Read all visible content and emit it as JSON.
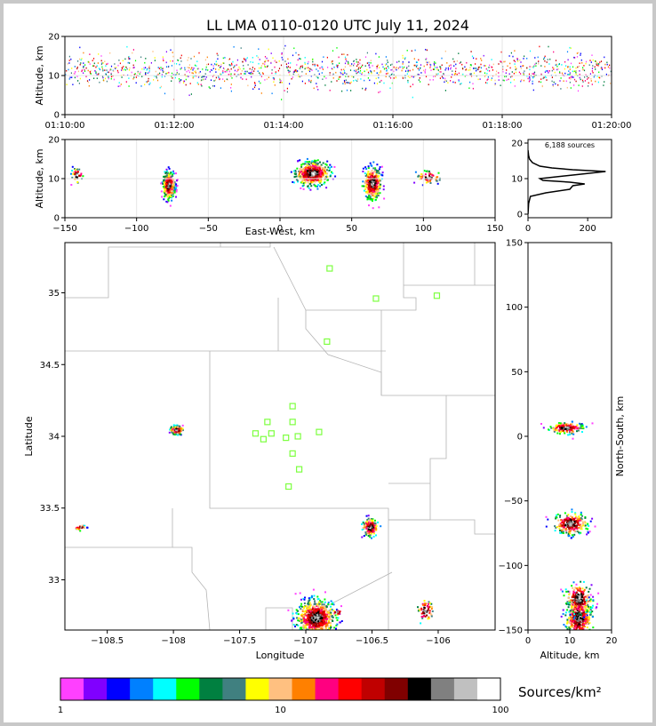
{
  "title": "LL LMA 0110-0120 UTC July 11, 2024",
  "colors": {
    "axis": "#000000",
    "grid": "#e6e6e6",
    "border": "#b4b4b4",
    "station": "#7dff40",
    "profile": "#000000"
  },
  "chart_data": [
    {
      "id": "time-height",
      "type": "scatter",
      "xlabel": "",
      "ylabel": "Altitude, km",
      "xlim_minutes": [
        0,
        10
      ],
      "ylim": [
        0,
        20
      ],
      "x_ticks": [
        {
          "v": 0,
          "label": "01:10:00"
        },
        {
          "v": 2,
          "label": "01:12:00"
        },
        {
          "v": 4,
          "label": "01:14:00"
        },
        {
          "v": 6,
          "label": "01:16:00"
        },
        {
          "v": 8,
          "label": "01:18:00"
        },
        {
          "v": 10,
          "label": "01:20:00"
        }
      ],
      "y_ticks": [
        0,
        10,
        20
      ]
    },
    {
      "id": "east-west-height",
      "type": "scatter",
      "xlabel": "East-West, km",
      "ylabel": "Altitude, km",
      "xlim": [
        -150,
        150
      ],
      "ylim": [
        0,
        20
      ],
      "x_ticks": [
        -150,
        -100,
        -50,
        0,
        50,
        100,
        150
      ],
      "y_ticks": [
        0,
        10,
        20
      ],
      "clusters": [
        {
          "x": -78,
          "y": 8.5,
          "sx": 2,
          "sy": 1.6
        },
        {
          "x": 22,
          "y": 11.5,
          "sx": 6,
          "sy": 1.5
        },
        {
          "x": 64,
          "y": 9,
          "sx": 3,
          "sy": 2
        },
        {
          "x": -142,
          "y": 11,
          "sx": 2,
          "sy": 1
        },
        {
          "x": 103,
          "y": 10.5,
          "sx": 4,
          "sy": 0.8
        }
      ]
    },
    {
      "id": "altitude-histogram",
      "type": "line",
      "annotation": "6,188 sources",
      "xlim": [
        0,
        280
      ],
      "ylim": [
        -1,
        21
      ],
      "x_ticks": [
        0,
        200
      ],
      "y_ticks": [
        0,
        10,
        20
      ],
      "profile": [
        [
          0,
          0
        ],
        [
          2,
          3
        ],
        [
          8,
          5
        ],
        [
          60,
          6
        ],
        [
          140,
          7
        ],
        [
          150,
          8
        ],
        [
          190,
          8.5
        ],
        [
          140,
          9
        ],
        [
          50,
          9.5
        ],
        [
          40,
          10
        ],
        [
          150,
          11
        ],
        [
          260,
          12
        ],
        [
          150,
          12.5
        ],
        [
          80,
          13
        ],
        [
          40,
          13.5
        ],
        [
          15,
          14.5
        ],
        [
          5,
          15.5
        ],
        [
          2,
          16.5
        ],
        [
          0,
          18
        ]
      ]
    },
    {
      "id": "plan-view",
      "type": "scatter",
      "xlabel": "Longitude",
      "ylabel": "Latitude",
      "xlim": [
        -108.82,
        -105.57
      ],
      "ylim": [
        32.65,
        35.35
      ],
      "x_ticks": [
        -108.5,
        -108.0,
        -107.5,
        -107.0,
        -106.5,
        -106.0
      ],
      "y_ticks": [
        33.0,
        33.5,
        34.0,
        34.5,
        35.0
      ],
      "stations": [
        [
          -106.82,
          35.17
        ],
        [
          -106.47,
          34.96
        ],
        [
          -106.01,
          34.98
        ],
        [
          -106.84,
          34.66
        ],
        [
          -107.1,
          34.21
        ],
        [
          -107.29,
          34.1
        ],
        [
          -107.1,
          34.1
        ],
        [
          -107.38,
          34.02
        ],
        [
          -107.26,
          34.02
        ],
        [
          -107.32,
          33.98
        ],
        [
          -107.15,
          33.99
        ],
        [
          -107.06,
          34.0
        ],
        [
          -106.9,
          34.03
        ],
        [
          -107.1,
          33.88
        ],
        [
          -107.05,
          33.77
        ],
        [
          -107.13,
          33.65
        ]
      ],
      "clusters": [
        {
          "x": -107.98,
          "y": 34.05,
          "sx": 0.025,
          "sy": 0.015
        },
        {
          "x": -106.93,
          "y": 32.74,
          "sx": 0.07,
          "sy": 0.06
        },
        {
          "x": -106.52,
          "y": 33.37,
          "sx": 0.03,
          "sy": 0.03
        },
        {
          "x": -108.71,
          "y": 33.37,
          "sx": 0.02,
          "sy": 0.01
        },
        {
          "x": -106.1,
          "y": 32.79,
          "sx": 0.03,
          "sy": 0.04
        },
        {
          "x": -106.77,
          "y": 32.78,
          "sx": 0.02,
          "sy": 0.01
        }
      ]
    },
    {
      "id": "north-south-height",
      "type": "scatter",
      "xlabel": "Altitude, km",
      "ylabel": "North-South, km",
      "xlim": [
        0,
        20
      ],
      "ylim": [
        -150,
        150
      ],
      "x_ticks": [
        0,
        10,
        20
      ],
      "y_ticks": [
        -150,
        -100,
        -50,
        0,
        50,
        100,
        150
      ],
      "clusters": [
        {
          "x": 9,
          "y": 7,
          "sx": 2,
          "sy": 2
        },
        {
          "x": 10,
          "y": -67,
          "sx": 2,
          "sy": 4
        },
        {
          "x": 12,
          "y": -140,
          "sx": 1.5,
          "sy": 8
        },
        {
          "x": 12,
          "y": -125,
          "sx": 1.5,
          "sy": 6
        }
      ]
    },
    {
      "id": "colorbar",
      "type": "heatmap",
      "label": "Sources/km²",
      "scale": "log",
      "range": [
        1,
        100
      ],
      "ticks": [
        {
          "v": 1,
          "label": "1"
        },
        {
          "v": 10,
          "label": "10"
        },
        {
          "v": 100,
          "label": "100"
        }
      ],
      "colors": [
        "#ff40ff",
        "#8000ff",
        "#0000ff",
        "#0080ff",
        "#00ffff",
        "#00ff00",
        "#008040",
        "#408080",
        "#ffff00",
        "#ffc080",
        "#ff8000",
        "#ff0080",
        "#ff0000",
        "#c00000",
        "#800000",
        "#000000",
        "#808080",
        "#c0c0c0",
        "#ffffff"
      ]
    }
  ]
}
